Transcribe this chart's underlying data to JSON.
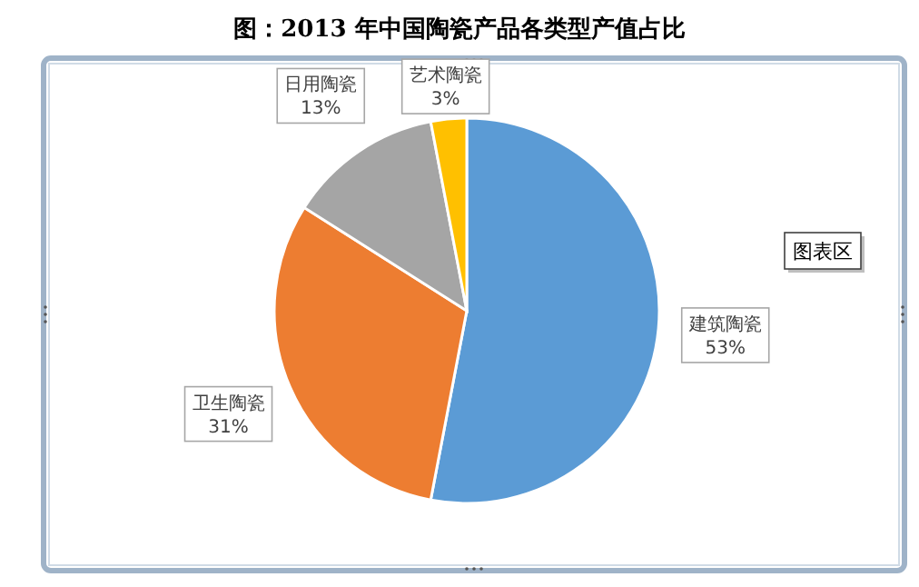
{
  "chart_data": {
    "type": "pie",
    "title": "图：2013 年中国陶瓷产品各类型产值占比",
    "categories": [
      "建筑陶瓷",
      "卫生陶瓷",
      "日用陶瓷",
      "艺术陶瓷"
    ],
    "values": [
      53,
      31,
      13,
      3
    ],
    "colors": [
      "#5b9bd5",
      "#ed7d31",
      "#a5a5a5",
      "#ffc000"
    ],
    "value_labels": [
      "53%",
      "31%",
      "13%",
      "3%"
    ],
    "annotations": [
      "图表区"
    ]
  }
}
